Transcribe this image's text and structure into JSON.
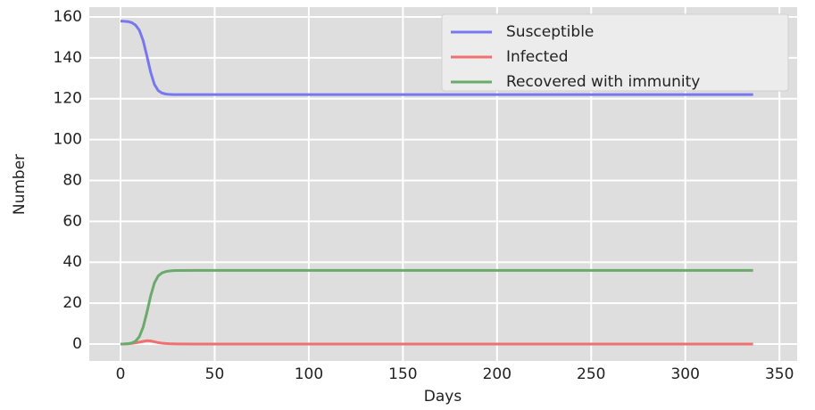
{
  "chart_data": {
    "type": "line",
    "xlabel": "Days",
    "ylabel": "Number",
    "x": [
      0,
      2,
      4,
      6,
      8,
      10,
      12,
      14,
      16,
      18,
      20,
      22,
      24,
      26,
      28,
      30,
      40,
      60,
      100,
      200,
      336
    ],
    "series": [
      {
        "name": "Susceptible",
        "color": "#7777f0",
        "values": [
          158,
          157.9,
          157.7,
          157.2,
          156,
          153.5,
          148.5,
          141,
          133,
          127,
          124,
          122.8,
          122.3,
          122.1,
          122,
          122,
          122,
          122,
          122,
          122,
          122
        ]
      },
      {
        "name": "Infected",
        "color": "#f07070",
        "values": [
          0,
          0.05,
          0.15,
          0.3,
          0.6,
          0.9,
          1.3,
          1.6,
          1.5,
          1.1,
          0.7,
          0.4,
          0.25,
          0.15,
          0.1,
          0.05,
          0,
          0,
          0,
          0,
          0
        ]
      },
      {
        "name": "Recovered with immunity",
        "color": "#6aaa6a",
        "values": [
          0,
          0.05,
          0.15,
          0.5,
          1.4,
          3.6,
          8.2,
          15.4,
          23.5,
          29.9,
          33.3,
          34.8,
          35.45,
          35.75,
          35.9,
          35.95,
          36,
          36,
          36,
          36,
          36
        ]
      }
    ],
    "xlim": [
      -16.6,
      359.4
    ],
    "xticks": [
      0,
      50,
      100,
      150,
      200,
      250,
      300,
      350
    ],
    "ylim": [
      -8.3,
      164.8
    ],
    "yticks": [
      0,
      20,
      40,
      60,
      80,
      100,
      120,
      140,
      160
    ],
    "grid": true,
    "legend": "upper right"
  }
}
